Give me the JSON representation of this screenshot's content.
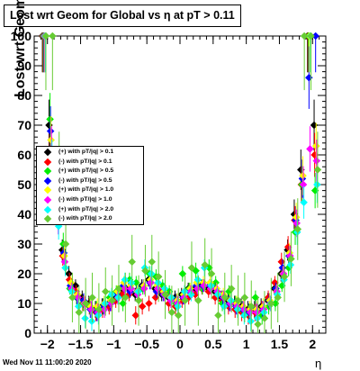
{
  "header": {
    "title": "Lost wrt Geom for Global vs  η at pT > 0.11"
  },
  "footer": {
    "timestamp": "Wed Nov 11 11:00:20 2020"
  },
  "chart_data": {
    "type": "scatter",
    "title": "Lost wrt Geom for Global vs  η at pT > 0.11",
    "xlabel": "η",
    "ylabel": "Lost wrt Geom (%)",
    "xlim": [
      -2.2,
      2.2
    ],
    "ylim": [
      0,
      100
    ],
    "x_ticks": [
      -2,
      -1.5,
      -1,
      -0.5,
      0,
      0.5,
      1,
      1.5,
      2
    ],
    "x_tick_labels": [
      "−2",
      "−1.5",
      "−1",
      "−0.5",
      "0",
      "0.5",
      "1",
      "1.5",
      "2"
    ],
    "y_ticks": [
      0,
      10,
      20,
      30,
      40,
      50,
      60,
      70,
      80,
      90,
      100
    ],
    "y_tick_labels": [
      "0",
      "10",
      "20",
      "30",
      "40",
      "50",
      "60",
      "70",
      "80",
      "90",
      "100"
    ],
    "grid": false,
    "legend_position": "left-middle",
    "x": [
      -2.05,
      -1.95,
      -1.85,
      -1.75,
      -1.65,
      -1.55,
      -1.45,
      -1.35,
      -1.25,
      -1.15,
      -1.05,
      -0.95,
      -0.85,
      -0.75,
      -0.65,
      -0.55,
      -0.45,
      -0.35,
      -0.25,
      -0.15,
      -0.05,
      0.05,
      0.15,
      0.25,
      0.35,
      0.45,
      0.55,
      0.65,
      0.75,
      0.85,
      0.95,
      1.05,
      1.15,
      1.25,
      1.35,
      1.45,
      1.55,
      1.65,
      1.75,
      1.85,
      1.95,
      2.05
    ],
    "series": [
      {
        "name": "(+) with pT/|q| > 0.1",
        "color": "#000000",
        "values": [
          100,
          70,
          45,
          28,
          20,
          16,
          12,
          10,
          8,
          9,
          10,
          12,
          14,
          15,
          13,
          16,
          18,
          15,
          13,
          12,
          12,
          13,
          15,
          15,
          16,
          15,
          14,
          12,
          11,
          10,
          9,
          8,
          8,
          9,
          11,
          15,
          20,
          28,
          40,
          55,
          100,
          70
        ]
      },
      {
        "name": "(-) with pT/|q| > 0.1",
        "color": "#ff0000",
        "values": [
          100,
          60,
          45,
          26,
          18,
          14,
          10,
          9,
          7,
          8,
          9,
          11,
          13,
          13,
          6,
          9,
          10,
          12,
          14,
          10,
          9,
          11,
          12,
          13,
          15,
          14,
          12,
          11,
          9,
          8,
          7,
          6,
          7,
          8,
          12,
          17,
          24,
          29,
          38,
          50,
          100,
          60
        ]
      },
      {
        "name": "(+) with pT/|q| > 0.5",
        "color": "#00ee00",
        "values": [
          100,
          72,
          44,
          30,
          15,
          12,
          10,
          9,
          8,
          9,
          12,
          14,
          10,
          18,
          17,
          15,
          20,
          19,
          16,
          14,
          10,
          20,
          15,
          21,
          15,
          22,
          17,
          10,
          14,
          10,
          8,
          7,
          12,
          6,
          9,
          10,
          16,
          22,
          34,
          50,
          100,
          48
        ]
      },
      {
        "name": "(-) with pT/|q| > 0.5",
        "color": "#0000ff",
        "values": [
          100,
          68,
          42,
          27,
          16,
          12,
          11,
          8,
          7,
          9,
          10,
          13,
          16,
          14,
          14,
          16,
          17,
          14,
          13,
          12,
          11,
          12,
          14,
          16,
          16,
          16,
          15,
          12,
          10,
          9,
          8,
          7,
          8,
          8,
          11,
          15,
          22,
          26,
          38,
          52,
          86,
          100
        ]
      },
      {
        "name": "(+) with pT/|q| > 1.0",
        "color": "#ffff00",
        "values": [
          100,
          65,
          40,
          26,
          17,
          13,
          10,
          9,
          9,
          10,
          11,
          14,
          17,
          16,
          14,
          16,
          18,
          16,
          14,
          12,
          11,
          13,
          15,
          17,
          17,
          17,
          15,
          13,
          11,
          10,
          9,
          8,
          8,
          9,
          11,
          14,
          20,
          27,
          39,
          53,
          100,
          63
        ]
      },
      {
        "name": "(-) with pT/|q| > 1.0",
        "color": "#ff00ff",
        "values": [
          100,
          62,
          38,
          24,
          15,
          12,
          10,
          8,
          7,
          8,
          10,
          12,
          15,
          15,
          13,
          15,
          17,
          15,
          13,
          11,
          10,
          12,
          14,
          15,
          16,
          15,
          14,
          12,
          10,
          9,
          8,
          7,
          7,
          8,
          10,
          14,
          20,
          26,
          37,
          50,
          62,
          58
        ]
      },
      {
        "name": "(+) with pT/|q| > 2.0",
        "color": "#00ffff",
        "values": [
          100,
          58,
          36,
          22,
          14,
          9,
          5,
          4,
          6,
          10,
          13,
          12,
          18,
          17,
          14,
          22,
          20,
          17,
          15,
          12,
          9,
          14,
          13,
          18,
          22,
          16,
          13,
          9,
          11,
          8,
          6,
          4,
          5,
          7,
          10,
          13,
          18,
          23,
          34,
          44,
          100,
          50
        ]
      },
      {
        "name": "(-) with pT/|q| > 2.0",
        "color": "#66cc33",
        "values": [
          100,
          100,
          55,
          30,
          12,
          7,
          10,
          12,
          8,
          14,
          11,
          15,
          12,
          24,
          11,
          21,
          24,
          19,
          13,
          7,
          6,
          11,
          22,
          11,
          23,
          20,
          6,
          12,
          15,
          11,
          12,
          9,
          3,
          5,
          10,
          12,
          19,
          25,
          35,
          100,
          100,
          55
        ]
      }
    ]
  }
}
